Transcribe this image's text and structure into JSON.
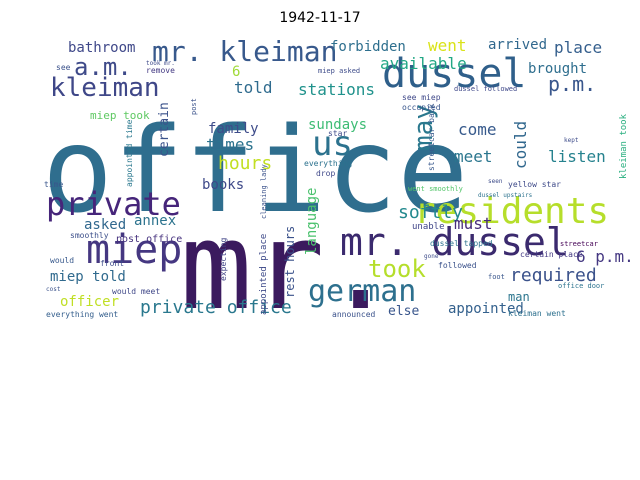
{
  "title": "1942-11-17",
  "words": [
    {
      "text": "office",
      "color": "#2f6e8e",
      "rotate": false
    },
    {
      "text": "mr.",
      "color": "#3b1a5e",
      "rotate": false
    },
    {
      "text": "dussel",
      "color": "#2f5f8a",
      "rotate": false
    },
    {
      "text": "residents",
      "color": "#b6de2b",
      "rotate": false
    },
    {
      "text": "mr. dussel",
      "color": "#3b2a6e",
      "rotate": false
    },
    {
      "text": "miep",
      "color": "#453781",
      "rotate": false
    },
    {
      "text": "private",
      "color": "#46257a",
      "rotate": false
    },
    {
      "text": "german",
      "color": "#2d708e",
      "rotate": false
    },
    {
      "text": "us",
      "color": "#2c728e",
      "rotate": false
    },
    {
      "text": "mr. kleiman",
      "color": "#38598c",
      "rotate": false
    },
    {
      "text": "kleiman",
      "color": "#3f4788",
      "rotate": false
    },
    {
      "text": "a.m.",
      "color": "#3e4a89",
      "rotate": false
    },
    {
      "text": "p.m.",
      "color": "#39568c",
      "rotate": false
    },
    {
      "text": "may",
      "color": "#2a788e",
      "rotate": true
    },
    {
      "text": "took",
      "color": "#b5de2b",
      "rotate": false
    },
    {
      "text": "private office",
      "color": "#2a788e",
      "rotate": false
    },
    {
      "text": "hours",
      "color": "#c2df23",
      "rotate": false
    },
    {
      "text": "required",
      "color": "#3b528b",
      "rotate": false
    },
    {
      "text": "language",
      "color": "#4ac16d",
      "rotate": true
    },
    {
      "text": "softly",
      "color": "#23898e",
      "rotate": false
    },
    {
      "text": "forbidden",
      "color": "#2e6f8e",
      "rotate": false
    },
    {
      "text": "went",
      "color": "#dae319",
      "rotate": false
    },
    {
      "text": "arrived",
      "color": "#31688e",
      "rotate": false
    },
    {
      "text": "place",
      "color": "#355f8d",
      "rotate": false
    },
    {
      "text": "bathroom",
      "color": "#3f4889",
      "rotate": false
    },
    {
      "text": "available",
      "color": "#22a785",
      "rotate": false
    },
    {
      "text": "brought",
      "color": "#2e6e8e",
      "rotate": false
    },
    {
      "text": "stations",
      "color": "#20928c",
      "rotate": false
    },
    {
      "text": "told",
      "color": "#2f6b8e",
      "rotate": false
    },
    {
      "text": "family",
      "color": "#3e4c8a",
      "rotate": false
    },
    {
      "text": "times",
      "color": "#2c738e",
      "rotate": false
    },
    {
      "text": "books",
      "color": "#3e4989",
      "rotate": false
    },
    {
      "text": "sundays",
      "color": "#3dbc74",
      "rotate": false
    },
    {
      "text": "certain",
      "color": "#3b528b",
      "rotate": true
    },
    {
      "text": "come",
      "color": "#375a8c",
      "rotate": false
    },
    {
      "text": "meet",
      "color": "#2a768e",
      "rotate": false
    },
    {
      "text": "could",
      "color": "#30678d",
      "rotate": true
    },
    {
      "text": "listen",
      "color": "#26828e",
      "rotate": false
    },
    {
      "text": "must",
      "color": "#472c7a",
      "rotate": false
    },
    {
      "text": "6 p.m.",
      "color": "#453882",
      "rotate": false
    },
    {
      "text": "asked",
      "color": "#31688e",
      "rotate": false
    },
    {
      "text": "annex",
      "color": "#2c738e",
      "rotate": false
    },
    {
      "text": "miep told",
      "color": "#306a8e",
      "rotate": false
    },
    {
      "text": "officer",
      "color": "#c0df25",
      "rotate": false
    },
    {
      "text": "rest hours",
      "color": "#3b528b",
      "rotate": true
    },
    {
      "text": "appointed",
      "color": "#34618d",
      "rotate": false
    },
    {
      "text": "man",
      "color": "#2b758e",
      "rotate": false
    },
    {
      "text": "else",
      "color": "#39568c",
      "rotate": false
    },
    {
      "text": "6",
      "color": "#a0da39",
      "rotate": false
    },
    {
      "text": "miep took",
      "color": "#5ec962",
      "rotate": false
    },
    {
      "text": "post office",
      "color": "#46327e",
      "rotate": false
    },
    {
      "text": "smoothly",
      "color": "#3c4f8a",
      "rotate": false
    },
    {
      "text": "everything went",
      "color": "#355f8d",
      "rotate": false
    },
    {
      "text": "announced",
      "color": "#3b528b",
      "rotate": false
    },
    {
      "text": "kleiman went",
      "color": "#2d708e",
      "rotate": false
    },
    {
      "text": "kleiman took",
      "color": "#29af7f",
      "rotate": true
    },
    {
      "text": "appointed place",
      "color": "#3e4a89",
      "rotate": true
    },
    {
      "text": "appointed time",
      "color": "#2a788e",
      "rotate": true
    },
    {
      "text": "unable",
      "color": "#404588",
      "rotate": false
    },
    {
      "text": "occupied",
      "color": "#39568c",
      "rotate": false
    },
    {
      "text": "see miep",
      "color": "#3f4889",
      "rotate": false
    },
    {
      "text": "streetcar back",
      "color": "#38588c",
      "rotate": true
    },
    {
      "text": "yellow star",
      "color": "#3e4a89",
      "rotate": false
    },
    {
      "text": "went smoothly",
      "color": "#52c569",
      "rotate": false
    },
    {
      "text": "dussel tapped",
      "color": "#2c728e",
      "rotate": false
    },
    {
      "text": "certain place",
      "color": "#443983",
      "rotate": false
    },
    {
      "text": "office door",
      "color": "#2c738e",
      "rotate": false
    },
    {
      "text": "streetcar",
      "color": "#440154",
      "rotate": false
    },
    {
      "text": "followed",
      "color": "#3b528b",
      "rotate": false
    },
    {
      "text": "front",
      "color": "#3e4c8a",
      "rotate": false
    },
    {
      "text": "would",
      "color": "#38598c",
      "rotate": false
    },
    {
      "text": "would meet",
      "color": "#3f4788",
      "rotate": false
    },
    {
      "text": "expecting",
      "color": "#414487",
      "rotate": true
    },
    {
      "text": "remove",
      "color": "#443a83",
      "rotate": false
    },
    {
      "text": "see",
      "color": "#3b528b",
      "rotate": false
    },
    {
      "text": "gone",
      "color": "#3e4c8a",
      "rotate": false
    },
    {
      "text": "everything",
      "color": "#2c728e",
      "rotate": false
    },
    {
      "text": "drop",
      "color": "#3f4889",
      "rotate": false
    },
    {
      "text": "foot",
      "color": "#39568c",
      "rotate": false
    },
    {
      "text": "cost",
      "color": "#3b528b",
      "rotate": false
    },
    {
      "text": "kept",
      "color": "#3e4c8a",
      "rotate": false
    },
    {
      "text": "star",
      "color": "#3e4a89",
      "rotate": false
    },
    {
      "text": "post",
      "color": "#3b528b",
      "rotate": true
    },
    {
      "text": "time",
      "color": "#39568c",
      "rotate": false
    },
    {
      "text": "took mr.",
      "color": "#3e4a89",
      "rotate": false
    },
    {
      "text": "miep asked",
      "color": "#3e4c8a",
      "rotate": false
    },
    {
      "text": "dussel followed",
      "color": "#3f4889",
      "rotate": false
    },
    {
      "text": "cleaning lady",
      "color": "#3b528b",
      "rotate": true
    },
    {
      "text": "dussel upstairs",
      "color": "#2c728e",
      "rotate": false
    },
    {
      "text": "seen",
      "color": "#3e4c8a",
      "rotate": false
    }
  ]
}
